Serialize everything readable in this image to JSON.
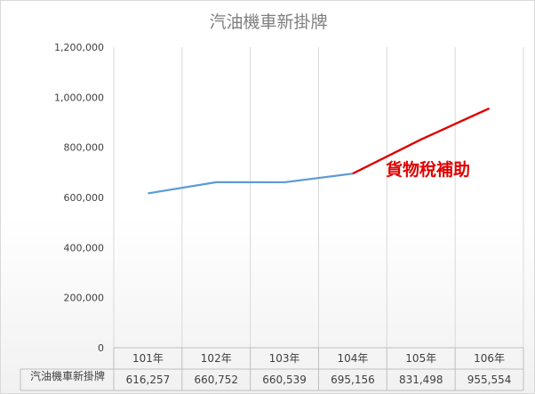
{
  "chart_data": {
    "type": "line",
    "title": "汽油機車新掛牌",
    "categories": [
      "101年",
      "102年",
      "103年",
      "104年",
      "105年",
      "106年"
    ],
    "series": [
      {
        "name": "汽油機車新掛牌",
        "values": [
          616257,
          660752,
          660539,
          695156,
          831498,
          955554
        ],
        "color": "#5b9bd5",
        "highlight_from_index": 3,
        "highlight_color": "#e00000"
      }
    ],
    "table_values": [
      "616,257",
      "660,752",
      "660,539",
      "695,156",
      "831,498",
      "955,554"
    ],
    "ylim": [
      0,
      1200000
    ],
    "yticks": [
      0,
      200000,
      400000,
      600000,
      800000,
      1000000,
      1200000
    ],
    "ytick_labels": [
      "0",
      "200,000",
      "400,000",
      "600,000",
      "800,000",
      "1,000,000",
      "1,200,000"
    ],
    "annotation": "貨物稅補助",
    "data_table": true,
    "grid": "vertical"
  }
}
